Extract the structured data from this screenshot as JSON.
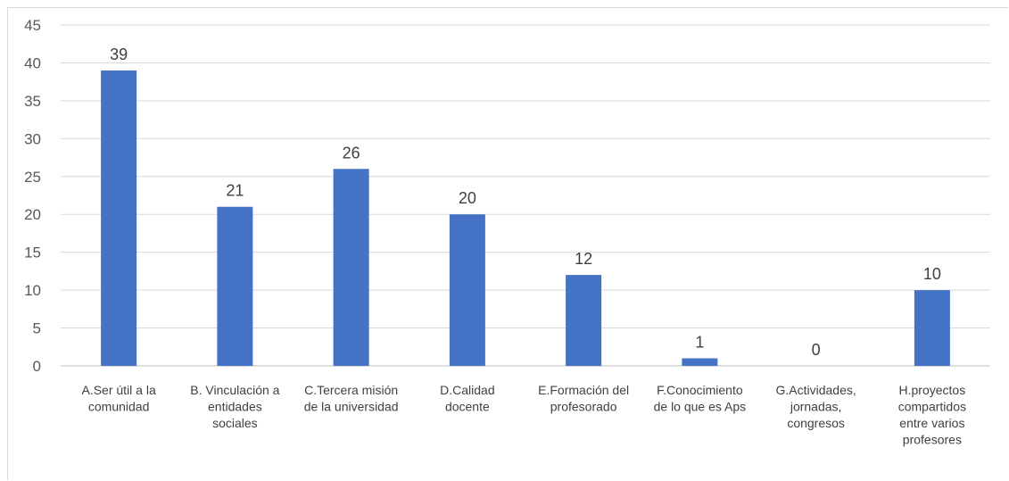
{
  "chart_data": {
    "type": "bar",
    "categories": [
      [
        "A.Ser útil a la",
        "comunidad"
      ],
      [
        "B. Vinculación a",
        "entidades",
        "sociales"
      ],
      [
        "C.Tercera misión",
        "de la universidad"
      ],
      [
        "D.Calidad",
        "docente"
      ],
      [
        "E.Formación del",
        "profesorado"
      ],
      [
        "F.Conocimiento",
        "de lo que es Aps"
      ],
      [
        "G.Actividades,",
        "jornadas,",
        "congresos"
      ],
      [
        "H.proyectos",
        "compartidos",
        "entre varios",
        "profesores"
      ]
    ],
    "values": [
      39,
      21,
      26,
      20,
      12,
      1,
      0,
      10
    ],
    "data_labels": [
      "39",
      "21",
      "26",
      "20",
      "12",
      "1",
      "0",
      "10"
    ],
    "ylim": [
      0,
      45
    ],
    "yticks": [
      0,
      5,
      10,
      15,
      20,
      25,
      30,
      35,
      40,
      45
    ],
    "grid": true,
    "title": "",
    "xlabel": "",
    "ylabel": "",
    "colors": {
      "bar": "#4472c4",
      "grid": "#d9d9d9",
      "axis": "#bfbfbf",
      "tick_text": "#595959",
      "label_text": "#404040"
    }
  }
}
